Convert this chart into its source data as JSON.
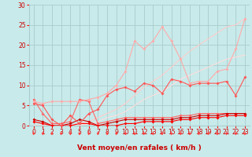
{
  "x": [
    0,
    1,
    2,
    3,
    4,
    5,
    6,
    7,
    8,
    9,
    10,
    11,
    12,
    13,
    14,
    15,
    16,
    17,
    18,
    19,
    20,
    21,
    22,
    23
  ],
  "lines": [
    {
      "y": [
        6.5,
        3.0,
        0.5,
        0.5,
        1.0,
        6.5,
        6.0,
        0.5,
        1.0,
        1.5,
        2.0,
        2.0,
        2.0,
        2.0,
        2.0,
        2.0,
        2.5,
        2.5,
        3.0,
        3.0,
        3.0,
        3.0,
        3.0,
        3.0
      ],
      "color": "#ff6666",
      "lw": 0.8,
      "marker": "D",
      "ms": 2.0
    },
    {
      "y": [
        1.5,
        1.0,
        0.0,
        0.0,
        0.5,
        1.5,
        1.0,
        0.0,
        0.5,
        1.0,
        1.5,
        1.5,
        1.5,
        1.5,
        1.5,
        1.5,
        2.0,
        2.0,
        2.5,
        2.5,
        2.5,
        3.0,
        3.0,
        3.0
      ],
      "color": "#cc0000",
      "lw": 0.8,
      "marker": "D",
      "ms": 2.0
    },
    {
      "y": [
        1.0,
        0.5,
        0.0,
        0.0,
        0.0,
        0.5,
        0.5,
        0.0,
        0.0,
        0.0,
        0.5,
        0.5,
        1.0,
        1.0,
        1.0,
        1.0,
        1.5,
        1.5,
        2.0,
        2.0,
        2.0,
        2.5,
        2.5,
        2.5
      ],
      "color": "#ff0000",
      "lw": 0.8,
      "marker": "D",
      "ms": 2.0
    },
    {
      "y": [
        6.0,
        5.5,
        6.0,
        6.0,
        6.0,
        6.0,
        6.5,
        7.0,
        8.0,
        10.0,
        13.5,
        21.0,
        19.0,
        21.0,
        24.5,
        21.0,
        16.5,
        10.5,
        11.0,
        11.0,
        13.5,
        14.0,
        19.0,
        26.5
      ],
      "color": "#ffaaaa",
      "lw": 0.8,
      "marker": "D",
      "ms": 2.0
    },
    {
      "y": [
        5.5,
        5.0,
        1.5,
        0.0,
        2.5,
        0.5,
        3.0,
        4.0,
        7.5,
        9.0,
        9.5,
        8.5,
        10.5,
        10.0,
        8.0,
        11.5,
        11.0,
        10.0,
        10.5,
        10.5,
        10.5,
        11.0,
        7.5,
        12.0
      ],
      "color": "#ff5555",
      "lw": 0.8,
      "marker": "D",
      "ms": 2.0
    },
    {
      "y": [
        0.0,
        0.0,
        0.0,
        0.0,
        0.0,
        0.5,
        1.0,
        2.0,
        3.0,
        4.0,
        5.5,
        7.5,
        9.5,
        11.0,
        12.5,
        14.5,
        16.5,
        18.5,
        20.0,
        21.5,
        23.0,
        24.5,
        25.0,
        26.5
      ],
      "color": "#ffcccc",
      "lw": 0.8,
      "marker": null,
      "ms": 0
    },
    {
      "y": [
        0.0,
        0.0,
        0.0,
        0.0,
        0.0,
        0.0,
        0.5,
        1.0,
        2.0,
        2.5,
        3.5,
        5.0,
        6.5,
        7.5,
        8.5,
        10.0,
        11.5,
        12.5,
        13.5,
        14.5,
        15.5,
        16.5,
        17.0,
        17.5
      ],
      "color": "#ffdddd",
      "lw": 0.8,
      "marker": null,
      "ms": 0
    }
  ],
  "xlabel": "Vent moyen/en rafales ( km/h )",
  "xlim": [
    -0.5,
    23.5
  ],
  "ylim": [
    0,
    30
  ],
  "yticks": [
    0,
    5,
    10,
    15,
    20,
    25,
    30
  ],
  "xticks": [
    0,
    1,
    2,
    3,
    4,
    5,
    6,
    7,
    8,
    9,
    10,
    11,
    12,
    13,
    14,
    15,
    16,
    17,
    18,
    19,
    20,
    21,
    22,
    23
  ],
  "bg_color": "#c8eaea",
  "grid_color": "#aacccc",
  "tick_color": "#ff0000",
  "label_color": "#cc0000",
  "arrow_color": "#ff4444",
  "xlabel_fontsize": 6.5,
  "tick_fontsize": 5.5
}
